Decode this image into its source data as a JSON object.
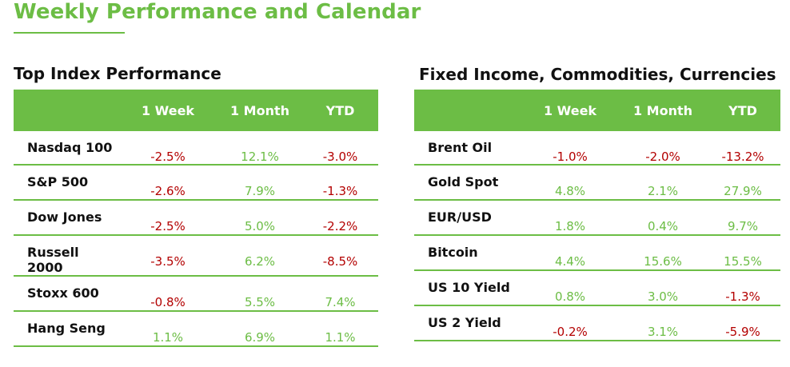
{
  "page": {
    "title": "Weekly Performance and Calendar"
  },
  "index_table": {
    "title": "Top Index Performance",
    "columns": [
      "",
      "1 Week",
      "1 Month",
      "YTD"
    ],
    "rows": [
      {
        "name": "Nasdaq 100",
        "week": "-2.5%",
        "month": "12.1%",
        "ytd": "-3.0%"
      },
      {
        "name": "S&P 500",
        "week": "-2.6%",
        "month": "7.9%",
        "ytd": "-1.3%"
      },
      {
        "name": "Dow Jones",
        "week": "-2.5%",
        "month": "5.0%",
        "ytd": "-2.2%"
      },
      {
        "name": "Russell 2000",
        "week": "-3.5%",
        "month": "6.2%",
        "ytd": "-8.5%"
      },
      {
        "name": "Stoxx 600",
        "week": "-0.8%",
        "month": "5.5%",
        "ytd": "7.4%"
      },
      {
        "name": "Hang Seng",
        "week": "1.1%",
        "month": "6.9%",
        "ytd": "1.1%"
      }
    ]
  },
  "fx_table": {
    "title": "Fixed Income, Commodities, Currencies",
    "columns": [
      "",
      "1 Week",
      "1 Month",
      "YTD"
    ],
    "rows": [
      {
        "name": "Brent Oil",
        "week": "-1.0%",
        "month": "-2.0%",
        "ytd": "-13.2%"
      },
      {
        "name": "Gold Spot",
        "week": "4.8%",
        "month": "2.1%",
        "ytd": "27.9%"
      },
      {
        "name": "EUR/USD",
        "week": "1.8%",
        "month": "0.4%",
        "ytd": "9.7%"
      },
      {
        "name": "Bitcoin",
        "week": "4.4%",
        "month": "15.6%",
        "ytd": "15.5%"
      },
      {
        "name": "US 10 Yield",
        "week": "0.8%",
        "month": "3.0%",
        "ytd": "-1.3%"
      },
      {
        "name": "US 2 Yield",
        "week": "-0.2%",
        "month": "3.1%",
        "ytd": "-5.9%"
      }
    ]
  },
  "colors": {
    "accent_green": "#6cbd45",
    "negative_red": "#b30000",
    "text_dark": "#111111"
  }
}
